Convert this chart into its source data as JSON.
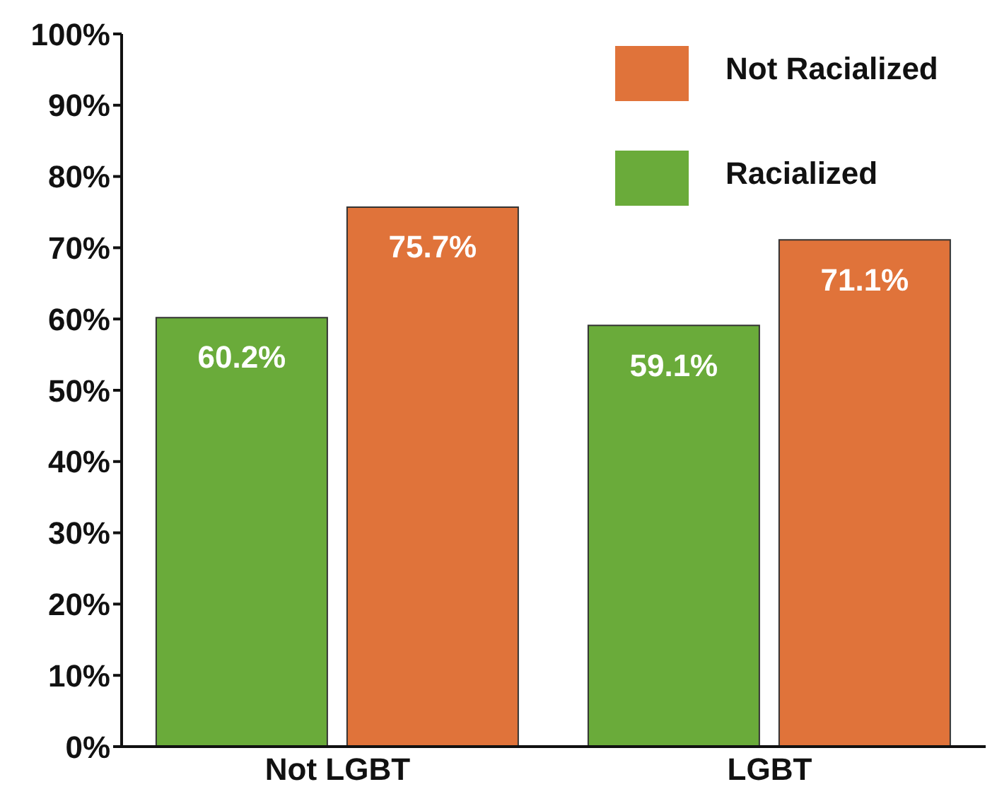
{
  "chart_data": {
    "type": "bar",
    "categories": [
      "Not LGBT",
      "LGBT"
    ],
    "series": [
      {
        "name": "Racialized",
        "color": "#6aab3a",
        "values": [
          60.2,
          59.1
        ],
        "value_labels": [
          "60.2%",
          "59.1%"
        ]
      },
      {
        "name": "Not Racialized",
        "color": "#e0733a",
        "values": [
          75.7,
          71.1
        ],
        "value_labels": [
          "75.7%",
          "71.1%"
        ]
      }
    ],
    "ylim": [
      0,
      100
    ],
    "yticks": [
      {
        "value": 0,
        "label": "0%"
      },
      {
        "value": 10,
        "label": "10%"
      },
      {
        "value": 20,
        "label": "20%"
      },
      {
        "value": 30,
        "label": "30%"
      },
      {
        "value": 40,
        "label": "40%"
      },
      {
        "value": 50,
        "label": "50%"
      },
      {
        "value": 60,
        "label": "60%"
      },
      {
        "value": 70,
        "label": "70%"
      },
      {
        "value": 80,
        "label": "80%"
      },
      {
        "value": 90,
        "label": "90%"
      },
      {
        "value": 100,
        "label": "100%"
      }
    ],
    "grid": false,
    "legend": "top right"
  }
}
